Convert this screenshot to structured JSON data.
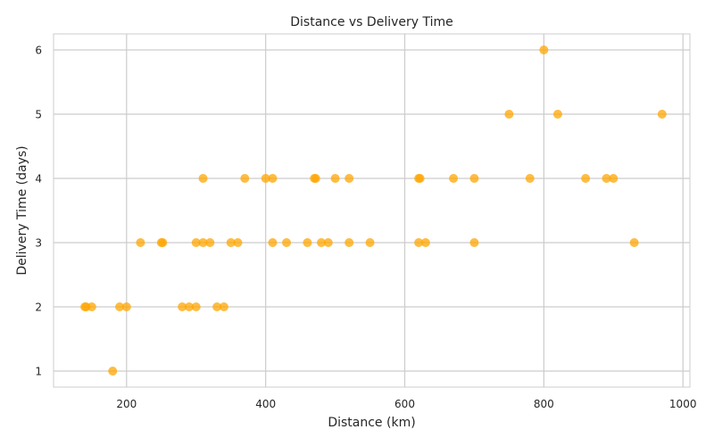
{
  "chart_data": {
    "type": "scatter",
    "title": "Distance vs Delivery Time",
    "xlabel": "Distance (km)",
    "ylabel": "Delivery Time (days)",
    "xlim": [
      95,
      1010
    ],
    "ylim": [
      0.75,
      6.25
    ],
    "xticks": [
      200,
      400,
      600,
      800,
      1000
    ],
    "yticks": [
      1,
      2,
      3,
      4,
      5,
      6
    ],
    "grid": true,
    "legend": "none",
    "point_color": "#FFA500",
    "point_opacity": 0.75,
    "points": [
      {
        "x": 140,
        "y": 2
      },
      {
        "x": 142,
        "y": 2
      },
      {
        "x": 150,
        "y": 2
      },
      {
        "x": 180,
        "y": 1
      },
      {
        "x": 190,
        "y": 2
      },
      {
        "x": 200,
        "y": 2
      },
      {
        "x": 220,
        "y": 3
      },
      {
        "x": 250,
        "y": 3
      },
      {
        "x": 252,
        "y": 3
      },
      {
        "x": 280,
        "y": 2
      },
      {
        "x": 290,
        "y": 2
      },
      {
        "x": 300,
        "y": 2
      },
      {
        "x": 300,
        "y": 3
      },
      {
        "x": 310,
        "y": 3
      },
      {
        "x": 310,
        "y": 4
      },
      {
        "x": 320,
        "y": 3
      },
      {
        "x": 330,
        "y": 2
      },
      {
        "x": 340,
        "y": 2
      },
      {
        "x": 350,
        "y": 3
      },
      {
        "x": 360,
        "y": 3
      },
      {
        "x": 370,
        "y": 4
      },
      {
        "x": 400,
        "y": 4
      },
      {
        "x": 410,
        "y": 4
      },
      {
        "x": 410,
        "y": 3
      },
      {
        "x": 430,
        "y": 3
      },
      {
        "x": 460,
        "y": 3
      },
      {
        "x": 470,
        "y": 4
      },
      {
        "x": 472,
        "y": 4
      },
      {
        "x": 480,
        "y": 3
      },
      {
        "x": 490,
        "y": 3
      },
      {
        "x": 500,
        "y": 4
      },
      {
        "x": 520,
        "y": 4
      },
      {
        "x": 520,
        "y": 3
      },
      {
        "x": 550,
        "y": 3
      },
      {
        "x": 620,
        "y": 4
      },
      {
        "x": 622,
        "y": 4
      },
      {
        "x": 620,
        "y": 3
      },
      {
        "x": 630,
        "y": 3
      },
      {
        "x": 670,
        "y": 4
      },
      {
        "x": 700,
        "y": 4
      },
      {
        "x": 700,
        "y": 3
      },
      {
        "x": 750,
        "y": 5
      },
      {
        "x": 780,
        "y": 4
      },
      {
        "x": 800,
        "y": 6
      },
      {
        "x": 820,
        "y": 5
      },
      {
        "x": 860,
        "y": 4
      },
      {
        "x": 890,
        "y": 4
      },
      {
        "x": 900,
        "y": 4
      },
      {
        "x": 930,
        "y": 3
      },
      {
        "x": 970,
        "y": 5
      }
    ]
  }
}
